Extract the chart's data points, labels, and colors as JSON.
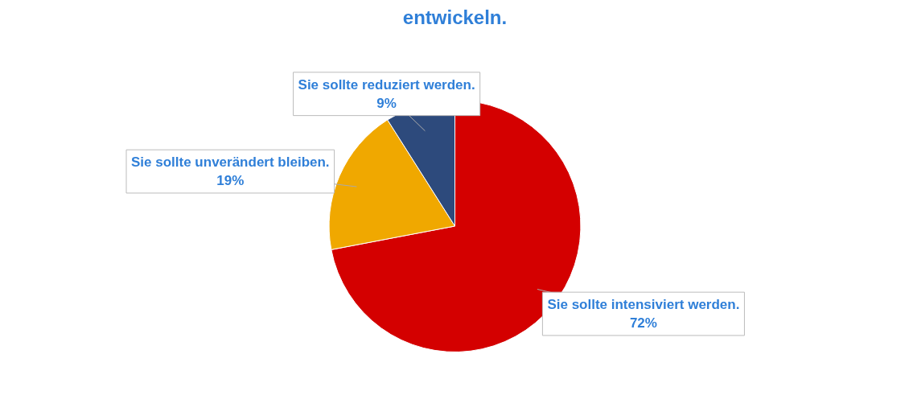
{
  "chart_data": {
    "type": "pie",
    "title": "entwickeln.",
    "categories": [
      "Sie sollte intensiviert werden.",
      "Sie sollte unverändert bleiben.",
      "Sie sollte reduziert werden."
    ],
    "values": [
      72,
      19,
      9
    ],
    "colors": [
      "#d40000",
      "#f0a800",
      "#2d4a7c"
    ],
    "value_labels": [
      "72%",
      "19%",
      "9%"
    ]
  }
}
